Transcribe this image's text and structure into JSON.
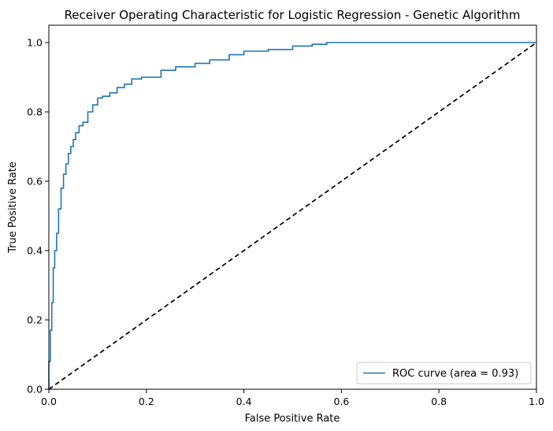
{
  "chart_data": {
    "type": "line",
    "title": "Receiver Operating Characteristic for Logistic Regression - Genetic Algorithm",
    "xlabel": "False Positive Rate",
    "ylabel": "True Positive Rate",
    "xlim": [
      0.0,
      1.0
    ],
    "ylim": [
      0.0,
      1.05
    ],
    "xticks": [
      "0.0",
      "0.2",
      "0.4",
      "0.6",
      "0.8",
      "1.0"
    ],
    "yticks": [
      "0.0",
      "0.2",
      "0.4",
      "0.6",
      "0.8",
      "1.0"
    ],
    "grid": false,
    "legend_position": "lower-right",
    "series": [
      {
        "name": "ROC curve (area = 0.93)",
        "style": "solid",
        "color": "#1f77b4",
        "x": [
          0.0,
          0.0,
          0.003,
          0.003,
          0.006,
          0.006,
          0.009,
          0.009,
          0.012,
          0.012,
          0.016,
          0.016,
          0.02,
          0.02,
          0.025,
          0.025,
          0.03,
          0.03,
          0.035,
          0.035,
          0.04,
          0.04,
          0.045,
          0.045,
          0.05,
          0.05,
          0.055,
          0.055,
          0.062,
          0.062,
          0.07,
          0.07,
          0.08,
          0.08,
          0.09,
          0.09,
          0.1,
          0.1,
          0.11,
          0.11,
          0.125,
          0.125,
          0.14,
          0.14,
          0.155,
          0.155,
          0.17,
          0.17,
          0.19,
          0.19,
          0.23,
          0.23,
          0.26,
          0.26,
          0.3,
          0.3,
          0.33,
          0.33,
          0.37,
          0.37,
          0.4,
          0.4,
          0.45,
          0.45,
          0.5,
          0.5,
          0.54,
          0.54,
          0.57,
          0.57,
          1.0
        ],
        "y": [
          0.0,
          0.08,
          0.08,
          0.17,
          0.17,
          0.25,
          0.25,
          0.35,
          0.35,
          0.4,
          0.4,
          0.45,
          0.45,
          0.52,
          0.52,
          0.58,
          0.58,
          0.62,
          0.62,
          0.65,
          0.65,
          0.68,
          0.68,
          0.7,
          0.7,
          0.72,
          0.72,
          0.74,
          0.74,
          0.76,
          0.76,
          0.77,
          0.77,
          0.8,
          0.8,
          0.82,
          0.82,
          0.84,
          0.84,
          0.845,
          0.845,
          0.855,
          0.855,
          0.87,
          0.87,
          0.88,
          0.88,
          0.895,
          0.895,
          0.9,
          0.9,
          0.92,
          0.92,
          0.93,
          0.93,
          0.94,
          0.94,
          0.95,
          0.95,
          0.965,
          0.965,
          0.975,
          0.975,
          0.98,
          0.98,
          0.99,
          0.99,
          0.995,
          0.995,
          1.0,
          1.0
        ]
      },
      {
        "style": "dashed",
        "color": "#000000",
        "x": [
          0.0,
          1.0
        ],
        "y": [
          0.0,
          1.0
        ]
      }
    ]
  }
}
